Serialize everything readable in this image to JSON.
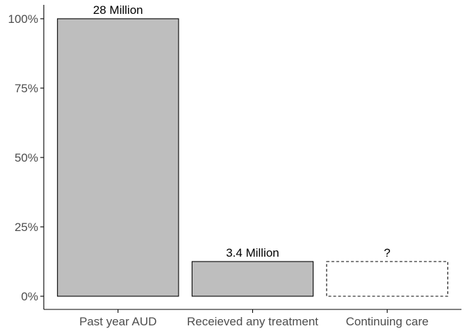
{
  "chart_data": {
    "type": "bar",
    "title": "",
    "xlabel": "",
    "ylabel": "",
    "categories": [
      "Past year AUD",
      "Receieved any treatment",
      "Continuing care"
    ],
    "values": [
      100,
      12.5,
      12.5
    ],
    "value_unknown": [
      false,
      false,
      true
    ],
    "data_labels": [
      "28 Million",
      "3.4 Million",
      "?"
    ],
    "ylim": [
      0,
      100
    ],
    "yticks": [
      0,
      25,
      50,
      75,
      100
    ],
    "ytick_labels": [
      "0%",
      "25%",
      "50%",
      "75%",
      "100%"
    ],
    "grid": false,
    "legend": "none",
    "colors": {
      "bar_fill": "#bebebe",
      "bar_stroke": "#000000",
      "axis": "#000000",
      "text": "#4d4d4d"
    }
  }
}
